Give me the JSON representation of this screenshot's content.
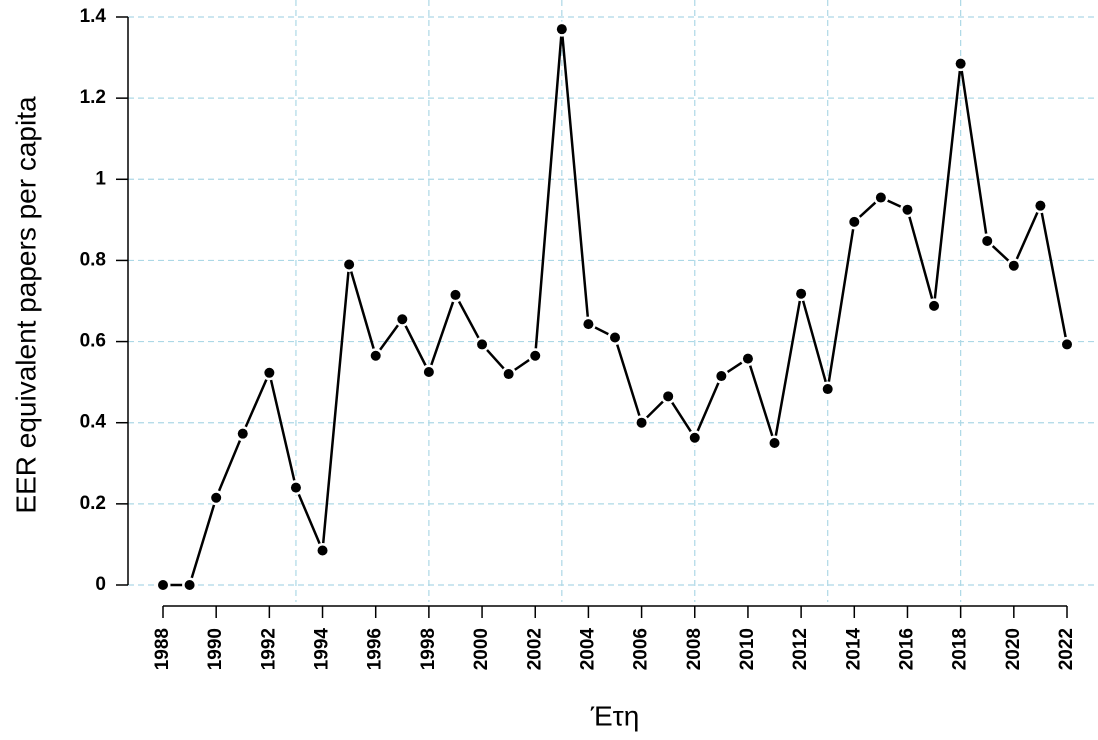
{
  "chart_data": {
    "type": "line",
    "x_label": "Έτη",
    "y_label": "EER equivalent papers per capita",
    "x": [
      1988,
      1989,
      1990,
      1991,
      1992,
      1993,
      1994,
      1995,
      1996,
      1997,
      1998,
      1999,
      2000,
      2001,
      2002,
      2003,
      2004,
      2005,
      2006,
      2007,
      2008,
      2009,
      2010,
      2011,
      2012,
      2013,
      2014,
      2015,
      2016,
      2017,
      2018,
      2019,
      2020,
      2021,
      2022
    ],
    "series": [
      {
        "color": "#000000",
        "values": [
          0,
          0,
          0.215,
          0.373,
          0.523,
          0.24,
          0.085,
          0.79,
          0.565,
          0.655,
          0.525,
          0.715,
          0.593,
          0.52,
          0.565,
          1.37,
          0.643,
          0.61,
          0.4,
          0.465,
          0.363,
          0.515,
          0.558,
          0.35,
          0.718,
          0.483,
          0.895,
          0.955,
          0.925,
          0.688,
          1.285,
          0.848,
          0.787,
          0.935,
          0.593
        ]
      }
    ],
    "xlim": [
      1988,
      2022
    ],
    "ylim": [
      0,
      1.4
    ],
    "xticks": [
      1988,
      1990,
      1992,
      1994,
      1996,
      1998,
      2000,
      2002,
      2004,
      2006,
      2008,
      2010,
      2012,
      2014,
      2016,
      2018,
      2020,
      2022
    ],
    "yticks": [
      0,
      0.2,
      0.4,
      0.6,
      0.8,
      1,
      1.2,
      1.4
    ],
    "x_grid": [
      1993,
      1998,
      2003,
      2008,
      2013,
      2018
    ],
    "grid": true,
    "grid_color": "#add8e6"
  }
}
